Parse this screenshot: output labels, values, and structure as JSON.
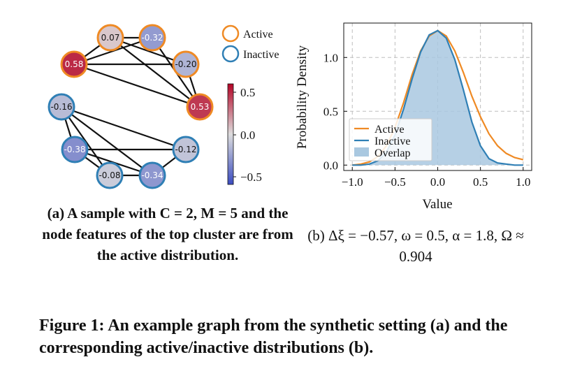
{
  "graph": {
    "legend": [
      {
        "label": "Active",
        "color": "#ef8a24"
      },
      {
        "label": "Inactive",
        "color": "#2f7fb5"
      }
    ],
    "nodes": [
      {
        "id": "n007",
        "label": "0.07",
        "value": 0.07,
        "group": "Active"
      },
      {
        "id": "n032",
        "label": "-0.32",
        "value": -0.32,
        "group": "Active"
      },
      {
        "id": "n058",
        "label": "0.58",
        "value": 0.58,
        "group": "Active"
      },
      {
        "id": "n020",
        "label": "-0.20",
        "value": -0.2,
        "group": "Active"
      },
      {
        "id": "n053",
        "label": "0.53",
        "value": 0.53,
        "group": "Active"
      },
      {
        "id": "n016",
        "label": "-0.16",
        "value": -0.16,
        "group": "Inactive"
      },
      {
        "id": "n038",
        "label": "-0.38",
        "value": -0.38,
        "group": "Inactive"
      },
      {
        "id": "n012",
        "label": "-0.12",
        "value": -0.12,
        "group": "Inactive"
      },
      {
        "id": "n008",
        "label": "-0.08",
        "value": -0.08,
        "group": "Inactive"
      },
      {
        "id": "n034",
        "label": "-0.34",
        "value": -0.34,
        "group": "Inactive"
      }
    ],
    "edges": [
      [
        "n007",
        "n032"
      ],
      [
        "n007",
        "n020"
      ],
      [
        "n007",
        "n053"
      ],
      [
        "n007",
        "n058"
      ],
      [
        "n032",
        "n058"
      ],
      [
        "n032",
        "n053"
      ],
      [
        "n058",
        "n020"
      ],
      [
        "n058",
        "n053"
      ],
      [
        "n020",
        "n053"
      ],
      [
        "n016",
        "n038"
      ],
      [
        "n016",
        "n008"
      ],
      [
        "n016",
        "n034"
      ],
      [
        "n016",
        "n012"
      ],
      [
        "n038",
        "n012"
      ],
      [
        "n038",
        "n008"
      ],
      [
        "n038",
        "n034"
      ],
      [
        "n008",
        "n034"
      ],
      [
        "n012",
        "n034"
      ]
    ],
    "colorbar": {
      "ticks": [
        "0.5",
        "0.0",
        "−0.5"
      ],
      "min": -0.7,
      "max": 0.7
    }
  },
  "chart_data": {
    "type": "area",
    "xlabel": "Value",
    "ylabel": "Probability Density",
    "xlim": [
      -1.1,
      1.1
    ],
    "ylim": [
      -0.05,
      1.32
    ],
    "xticks": [
      "−1.0",
      "−0.5",
      "0.0",
      "0.5",
      "1.0"
    ],
    "xtick_values": [
      -1.0,
      -0.5,
      0.0,
      0.5,
      1.0
    ],
    "yticks": [
      "0.0",
      "0.5",
      "1.0"
    ],
    "ytick_values": [
      0.0,
      0.5,
      1.0
    ],
    "grid": true,
    "legend_position": "lower-left",
    "series": [
      {
        "name": "Active",
        "color": "#ef8a24",
        "x": [
          -1.0,
          -0.9,
          -0.8,
          -0.7,
          -0.6,
          -0.5,
          -0.4,
          -0.3,
          -0.2,
          -0.1,
          0.0,
          0.1,
          0.2,
          0.3,
          0.4,
          0.5,
          0.6,
          0.7,
          0.8,
          0.9,
          1.0
        ],
        "y": [
          0.0,
          0.01,
          0.03,
          0.08,
          0.18,
          0.35,
          0.58,
          0.84,
          1.06,
          1.2,
          1.25,
          1.2,
          1.06,
          0.86,
          0.64,
          0.45,
          0.29,
          0.18,
          0.11,
          0.07,
          0.05
        ]
      },
      {
        "name": "Inactive",
        "color": "#2f7fb5",
        "x": [
          -1.0,
          -0.9,
          -0.8,
          -0.7,
          -0.6,
          -0.5,
          -0.4,
          -0.3,
          -0.2,
          -0.1,
          0.0,
          0.1,
          0.2,
          0.3,
          0.4,
          0.5,
          0.6,
          0.7,
          0.8,
          0.9,
          1.0
        ],
        "y": [
          0.0,
          0.0,
          0.01,
          0.04,
          0.12,
          0.28,
          0.52,
          0.8,
          1.05,
          1.21,
          1.25,
          1.18,
          0.98,
          0.7,
          0.4,
          0.18,
          0.06,
          0.02,
          0.01,
          0.0,
          0.0
        ]
      },
      {
        "name": "Overlap",
        "color": "#a9c8e0",
        "fill": true
      }
    ]
  },
  "captions": {
    "a": "(a) A sample with C = 2, M = 5 and the node features of the top cluster are from the active distribution.",
    "b": "(b) Δξ = −0.57, ω = 0.5, α = 1.8, Ω ≈ 0.904",
    "main": "Figure 1: An example graph from the synthetic setting (a) and the corresponding active/inactive distributions (b)."
  }
}
